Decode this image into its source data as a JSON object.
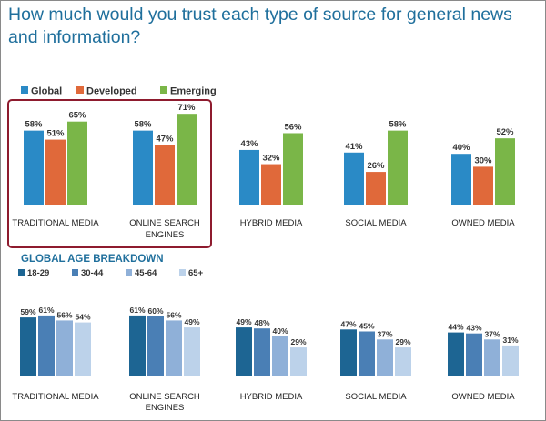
{
  "title": "How much would you trust each type of source for general news and information?",
  "chart_data": [
    {
      "type": "bar",
      "categories": [
        [
          "TRADITIONAL MEDIA"
        ],
        [
          "ONLINE SEARCH",
          "ENGINES"
        ],
        [
          "HYBRID MEDIA"
        ],
        [
          "SOCIAL MEDIA"
        ],
        [
          "OWNED MEDIA"
        ]
      ],
      "series": [
        {
          "name": "Global",
          "color": "#2a8ac6",
          "values": [
            58,
            58,
            43,
            41,
            40
          ]
        },
        {
          "name": "Developed",
          "color": "#e0693a",
          "values": [
            51,
            47,
            32,
            26,
            30
          ]
        },
        {
          "name": "Emerging",
          "color": "#7ab648",
          "values": [
            65,
            71,
            56,
            58,
            52
          ]
        }
      ],
      "value_suffix": "%",
      "highlighted_categories": [
        0,
        1
      ],
      "highlight_color": "#8e1b2e"
    },
    {
      "type": "bar",
      "title": "GLOBAL AGE BREAKDOWN",
      "categories": [
        [
          "TRADITIONAL MEDIA"
        ],
        [
          "ONLINE SEARCH",
          "ENGINES"
        ],
        [
          "HYBRID MEDIA"
        ],
        [
          "SOCIAL MEDIA"
        ],
        [
          "OWNED MEDIA"
        ]
      ],
      "series": [
        {
          "name": "18-29",
          "color": "#1d6593",
          "values": [
            59,
            61,
            49,
            47,
            44
          ]
        },
        {
          "name": "30-44",
          "color": "#4a7fb5",
          "values": [
            61,
            60,
            48,
            45,
            43
          ]
        },
        {
          "name": "45-64",
          "color": "#8fb0d8",
          "values": [
            56,
            56,
            40,
            37,
            37
          ]
        },
        {
          "name": "65+",
          "color": "#bcd2ea",
          "values": [
            54,
            49,
            29,
            29,
            31
          ]
        }
      ],
      "value_suffix": "%"
    }
  ]
}
